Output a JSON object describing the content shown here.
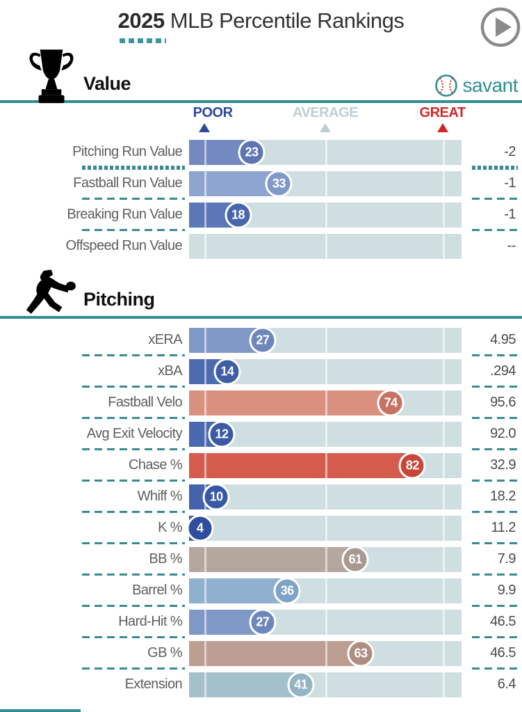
{
  "header": {
    "title_year": "2025",
    "title_rest": " MLB Percentile Rankings"
  },
  "brand": {
    "name": "savant",
    "teal": "#2f8d93",
    "stitch_red": "#d0392e"
  },
  "scale": {
    "poor_label": "POOR",
    "average_label": "AVERAGE",
    "great_label": "GREAT",
    "poor_color": "#2b4a9b",
    "average_color": "#bccfd6",
    "great_color": "#d02728",
    "positions_pct": [
      5.5,
      50,
      93
    ]
  },
  "colors": {
    "accent_teal": "#2f8d93",
    "track": "#cfdfe1",
    "label_gray": "#5e5e5e",
    "value_gray": "#4a4a4a",
    "play_gray": "#8a8a8a"
  },
  "sections": [
    {
      "title": "Value",
      "icon": "trophy-icon",
      "rows": [
        {
          "label": "Pitching Run Value",
          "pct": 23,
          "value": "-2",
          "bar": "#7389bf",
          "badge": "#5f75b2",
          "sep": "dotted"
        },
        {
          "label": "Fastball Run Value",
          "pct": 33,
          "value": "-1",
          "bar": "#8ea6cf",
          "badge": "#8099c6",
          "sep": "dashed"
        },
        {
          "label": "Breaking Run Value",
          "pct": 18,
          "value": "-1",
          "bar": "#5a77b8",
          "badge": "#4a66ab",
          "sep": "dashed"
        },
        {
          "label": "Offspeed Run Value",
          "pct": null,
          "value": "--",
          "bar": null,
          "badge": null,
          "sep": "none"
        }
      ]
    },
    {
      "title": "Pitching",
      "icon": "pitcher-icon",
      "rows": [
        {
          "label": "xERA",
          "pct": 27,
          "value": "4.95",
          "bar": "#8098c6",
          "badge": "#6e87bb",
          "sep": "dashed"
        },
        {
          "label": "xBA",
          "pct": 14,
          "value": ".294",
          "bar": "#4d6cb0",
          "badge": "#3f5ea5",
          "sep": "dashed"
        },
        {
          "label": "Fastball Velo",
          "pct": 74,
          "value": "95.6",
          "bar": "#d9907e",
          "badge": "#c57463",
          "sep": "dashed"
        },
        {
          "label": "Avg Exit Velocity",
          "pct": 12,
          "value": "92.0",
          "bar": "#4968b0",
          "badge": "#3c5aa4",
          "sep": "dashed"
        },
        {
          "label": "Chase %",
          "pct": 82,
          "value": "32.9",
          "bar": "#d55b4d",
          "badge": "#c8453a",
          "sep": "dashed"
        },
        {
          "label": "Whiff %",
          "pct": 10,
          "value": "18.2",
          "bar": "#4463ac",
          "badge": "#3759a5",
          "sep": "dashed"
        },
        {
          "label": "K %",
          "pct": 4,
          "value": "11.2",
          "bar": "#3c5ba6",
          "badge": "#2f4e9e",
          "sep": "dashed"
        },
        {
          "label": "BB %",
          "pct": 61,
          "value": "7.9",
          "bar": "#b5a69e",
          "badge": "#a89890",
          "sep": "dashed"
        },
        {
          "label": "Barrel %",
          "pct": 36,
          "value": "9.9",
          "bar": "#90b0d0",
          "badge": "#7fa3c6",
          "sep": "dashed"
        },
        {
          "label": "Hard-Hit %",
          "pct": 27,
          "value": "46.5",
          "bar": "#8098c6",
          "badge": "#6e87bb",
          "sep": "dashed"
        },
        {
          "label": "GB %",
          "pct": 63,
          "value": "46.5",
          "bar": "#bd9e93",
          "badge": "#ae8d82",
          "sep": "dashed"
        },
        {
          "label": "Extension",
          "pct": 41,
          "value": "6.4",
          "bar": "#a4c0cb",
          "badge": "#93b4c2",
          "sep": "none"
        }
      ]
    }
  ],
  "chart_data": {
    "type": "bar",
    "orientation": "horizontal",
    "title": "2025 MLB Percentile Rankings",
    "xlim": [
      0,
      100
    ],
    "scale_markers": {
      "labels": [
        "POOR",
        "AVERAGE",
        "GREAT"
      ],
      "positions_pct": [
        5.5,
        50,
        93
      ]
    },
    "groups": [
      {
        "name": "Value",
        "categories": [
          "Pitching Run Value",
          "Fastball Run Value",
          "Breaking Run Value",
          "Offspeed Run Value"
        ],
        "percentiles": [
          23,
          33,
          18,
          null
        ],
        "stat_values": [
          "-2",
          "-1",
          "-1",
          "--"
        ]
      },
      {
        "name": "Pitching",
        "categories": [
          "xERA",
          "xBA",
          "Fastball Velo",
          "Avg Exit Velocity",
          "Chase %",
          "Whiff %",
          "K %",
          "BB %",
          "Barrel %",
          "Hard-Hit %",
          "GB %",
          "Extension"
        ],
        "percentiles": [
          27,
          14,
          74,
          12,
          82,
          10,
          4,
          61,
          36,
          27,
          63,
          41
        ],
        "stat_values": [
          "4.95",
          ".294",
          "95.6",
          "92.0",
          "32.9",
          "18.2",
          "11.2",
          "7.9",
          "9.9",
          "46.5",
          "46.5",
          "6.4"
        ]
      }
    ]
  }
}
